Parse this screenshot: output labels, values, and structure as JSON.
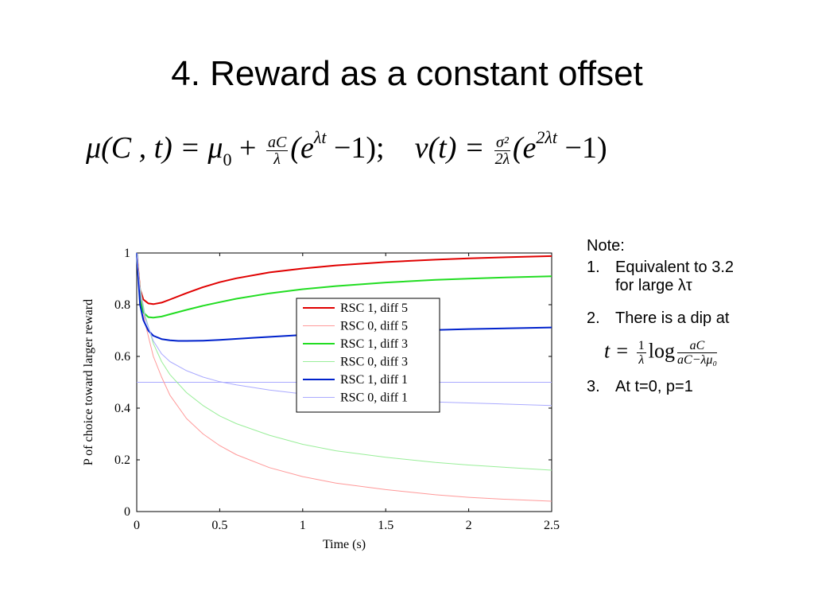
{
  "slide": {
    "title": "4. Reward as a constant offset",
    "equation": {
      "mu_lhs": "μ(C , t) = μ",
      "mu_sub": "0",
      "plus": " + ",
      "frac1_num": "aC",
      "frac1_den": "λ",
      "paren1": "(e",
      "exp1": "λt",
      "rest1": " −1);",
      "v_lhs": "ν(t) = ",
      "frac2_num": "σ²",
      "frac2_den": "2λ",
      "paren2": "(e",
      "exp2": "2λt",
      "rest2": " −1)"
    },
    "notes": {
      "heading": "Note:",
      "item1_num": "1.",
      "item1_line1": "Equivalent to 3.2",
      "item1_line2": "for large λτ",
      "item2_num": "2.",
      "item2_text": "There is a dip at",
      "formula_lhs": "t = ",
      "formula_f1_num": "1",
      "formula_f1_den": "λ",
      "formula_log": "log",
      "formula_f2_num": "aC",
      "formula_f2_den": "aC−λμ₀",
      "item3_num": "3.",
      "item3_text": "At t=0, p=1"
    }
  },
  "chart_data": {
    "type": "line",
    "xlabel": "Time (s)",
    "ylabel": "P of choice toward larger reward",
    "xlim": [
      0,
      2.5
    ],
    "ylim": [
      0,
      1
    ],
    "xticks": [
      0,
      0.5,
      1,
      1.5,
      2,
      2.5
    ],
    "xtick_labels": [
      "0",
      "0.5",
      "1",
      "1.5",
      "2",
      "2.5"
    ],
    "yticks": [
      0,
      0.2,
      0.4,
      0.6,
      0.8,
      1
    ],
    "ytick_labels": [
      "0",
      "0.2",
      "0.4",
      "0.6",
      "0.8",
      "1"
    ],
    "grid": false,
    "legend_position": "center-right",
    "reference_line": {
      "y": 0.5,
      "color": "#aaaaff"
    },
    "series": [
      {
        "name": "RSC 1, diff 5",
        "color": "#e00000",
        "width": 2,
        "x": [
          0,
          0.02,
          0.04,
          0.07,
          0.1,
          0.15,
          0.2,
          0.3,
          0.4,
          0.5,
          0.6,
          0.8,
          1.0,
          1.2,
          1.5,
          1.8,
          2.0,
          2.2,
          2.5
        ],
        "y": [
          1.0,
          0.86,
          0.82,
          0.805,
          0.802,
          0.808,
          0.82,
          0.845,
          0.868,
          0.887,
          0.902,
          0.925,
          0.94,
          0.952,
          0.965,
          0.974,
          0.979,
          0.983,
          0.988
        ]
      },
      {
        "name": "RSC 0, diff 5",
        "color": "#ff9999",
        "width": 1,
        "x": [
          0,
          0.02,
          0.05,
          0.1,
          0.15,
          0.2,
          0.3,
          0.4,
          0.5,
          0.6,
          0.8,
          1.0,
          1.2,
          1.5,
          1.8,
          2.0,
          2.2,
          2.5
        ],
        "y": [
          1.0,
          0.86,
          0.73,
          0.6,
          0.52,
          0.45,
          0.36,
          0.3,
          0.255,
          0.22,
          0.17,
          0.135,
          0.11,
          0.085,
          0.065,
          0.055,
          0.048,
          0.04
        ]
      },
      {
        "name": "RSC 1, diff 3",
        "color": "#22dd22",
        "width": 2,
        "x": [
          0,
          0.02,
          0.04,
          0.07,
          0.1,
          0.15,
          0.2,
          0.3,
          0.4,
          0.5,
          0.6,
          0.8,
          1.0,
          1.2,
          1.5,
          1.8,
          2.0,
          2.2,
          2.5
        ],
        "y": [
          1.0,
          0.82,
          0.77,
          0.752,
          0.75,
          0.754,
          0.763,
          0.78,
          0.796,
          0.81,
          0.823,
          0.844,
          0.86,
          0.872,
          0.886,
          0.896,
          0.901,
          0.905,
          0.91
        ]
      },
      {
        "name": "RSC 0, diff 3",
        "color": "#99ee99",
        "width": 1,
        "x": [
          0,
          0.02,
          0.05,
          0.1,
          0.15,
          0.2,
          0.3,
          0.4,
          0.5,
          0.6,
          0.8,
          1.0,
          1.2,
          1.5,
          1.8,
          2.0,
          2.2,
          2.5
        ],
        "y": [
          1.0,
          0.87,
          0.76,
          0.65,
          0.58,
          0.53,
          0.46,
          0.41,
          0.37,
          0.34,
          0.295,
          0.26,
          0.235,
          0.21,
          0.19,
          0.18,
          0.172,
          0.16
        ]
      },
      {
        "name": "RSC 1, diff 1",
        "color": "#0022cc",
        "width": 2,
        "x": [
          0,
          0.02,
          0.04,
          0.07,
          0.1,
          0.15,
          0.2,
          0.25,
          0.3,
          0.4,
          0.5,
          0.7,
          1.0,
          1.5,
          2.0,
          2.5
        ],
        "y": [
          1.0,
          0.8,
          0.74,
          0.7,
          0.68,
          0.667,
          0.662,
          0.66,
          0.66,
          0.661,
          0.664,
          0.672,
          0.683,
          0.697,
          0.706,
          0.712
        ]
      },
      {
        "name": "RSC 0, diff 1",
        "color": "#aaaaff",
        "width": 1,
        "x": [
          0,
          0.02,
          0.05,
          0.1,
          0.15,
          0.2,
          0.3,
          0.4,
          0.5,
          0.6,
          0.8,
          1.0,
          1.2,
          1.5,
          1.8,
          2.0,
          2.2,
          2.5
        ],
        "y": [
          1.0,
          0.86,
          0.75,
          0.66,
          0.61,
          0.58,
          0.545,
          0.52,
          0.502,
          0.49,
          0.47,
          0.455,
          0.445,
          0.433,
          0.424,
          0.42,
          0.416,
          0.41
        ]
      }
    ]
  }
}
